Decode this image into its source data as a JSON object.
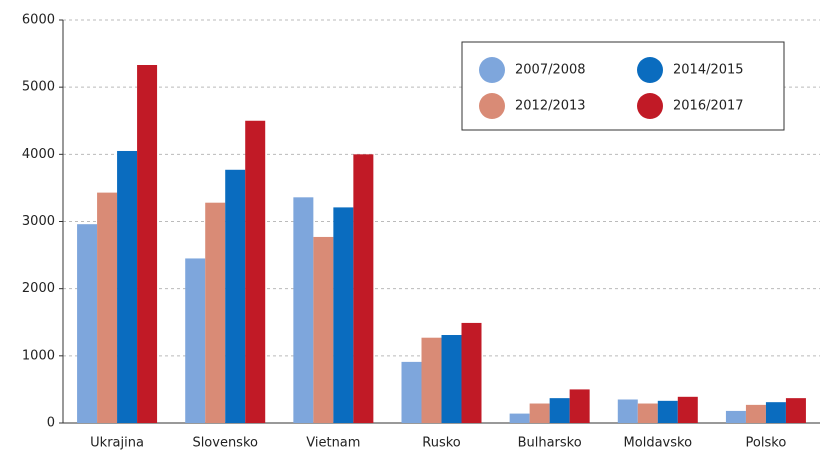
{
  "chart_data": {
    "type": "bar",
    "categories": [
      "Ukrajina",
      "Slovensko",
      "Vietnam",
      "Rusko",
      "Bulharsko",
      "Moldavsko",
      "Polsko"
    ],
    "series": [
      {
        "name": "2007/2008",
        "color": "#7ea6dc",
        "values": [
          2960,
          2450,
          3360,
          910,
          140,
          350,
          180
        ]
      },
      {
        "name": "2012/2013",
        "color": "#d98b76",
        "values": [
          3430,
          3280,
          2770,
          1270,
          290,
          290,
          270
        ]
      },
      {
        "name": "2014/2015",
        "color": "#0a6cbf",
        "values": [
          4050,
          3770,
          3210,
          1310,
          370,
          330,
          310
        ]
      },
      {
        "name": "2016/2017",
        "color": "#c11a26",
        "values": [
          5330,
          4500,
          4000,
          1490,
          500,
          390,
          370
        ]
      }
    ],
    "ylim": [
      0,
      6000
    ],
    "yticks": [
      0,
      1000,
      2000,
      3000,
      4000,
      5000,
      6000
    ],
    "grid": true,
    "legend": "upper right"
  }
}
